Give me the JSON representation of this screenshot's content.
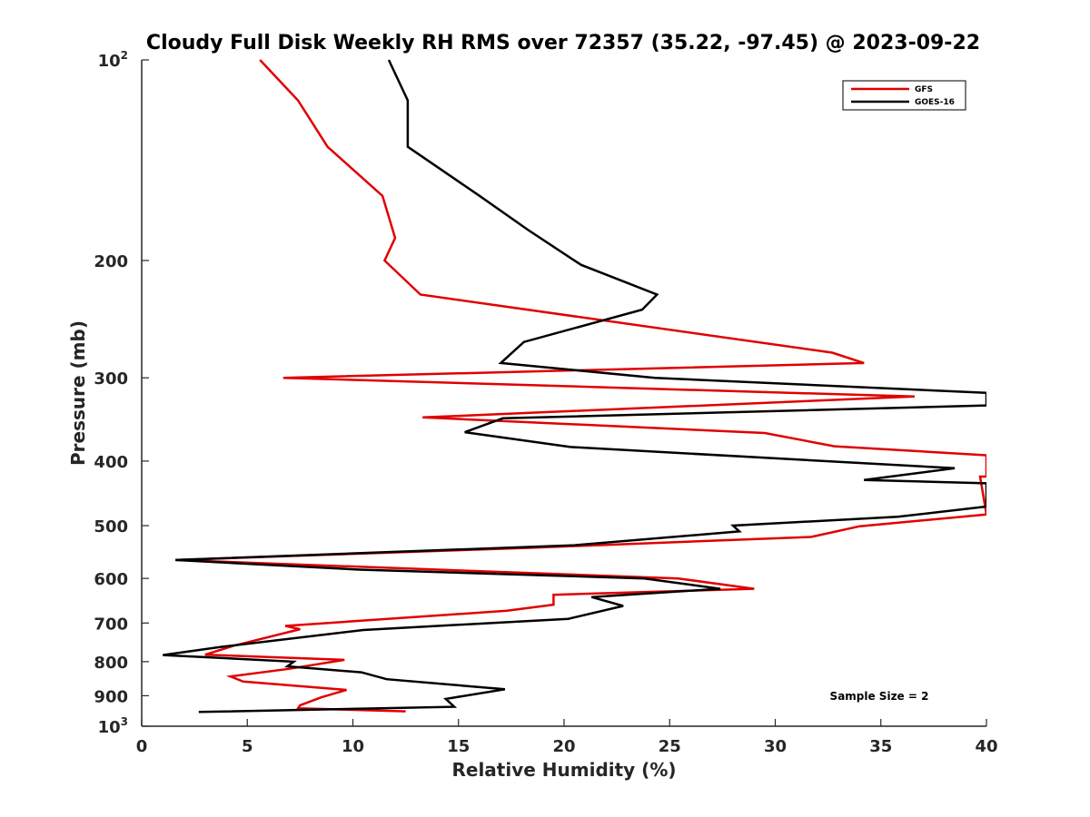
{
  "chart_data": {
    "type": "line",
    "title": "Cloudy Full Disk Weekly RH RMS over 72357 (35.22, -97.45) @ 2023-09-22",
    "xlabel": "Relative Humidity (%)",
    "ylabel": "Pressure (mb)",
    "xlim": [
      0,
      40
    ],
    "ylim": [
      100,
      1000
    ],
    "y_scale": "log",
    "y_reversed": true,
    "grid": false,
    "legend_position": "top-right",
    "x_ticks": [
      "0",
      "5",
      "10",
      "15",
      "20",
      "25",
      "30",
      "35",
      "40"
    ],
    "y_ticks": [
      {
        "value": 100,
        "base": "10",
        "exp": "2"
      },
      {
        "value": 200,
        "label": "200"
      },
      {
        "value": 300,
        "label": "300"
      },
      {
        "value": 400,
        "label": "400"
      },
      {
        "value": 500,
        "label": "500"
      },
      {
        "value": 600,
        "label": "600"
      },
      {
        "value": 700,
        "label": "700"
      },
      {
        "value": 800,
        "label": "800"
      },
      {
        "value": 900,
        "label": "900"
      },
      {
        "value": 1000,
        "base": "10",
        "exp": "3"
      }
    ],
    "annotation": "Sample Size = 2",
    "series": [
      {
        "name": "GFS",
        "color": "#e00000",
        "points": [
          [
            5.6,
            100
          ],
          [
            7.4,
            115
          ],
          [
            8.8,
            135
          ],
          [
            11.4,
            160
          ],
          [
            12.0,
            185
          ],
          [
            11.5,
            200
          ],
          [
            13.2,
            225
          ],
          [
            32.7,
            275
          ],
          [
            34.2,
            285
          ],
          [
            6.7,
            300
          ],
          [
            36.6,
            320
          ],
          [
            13.3,
            344
          ],
          [
            29.5,
            363
          ],
          [
            32.8,
            380
          ],
          [
            40.0,
            392
          ],
          [
            40.0,
            422
          ],
          [
            39.7,
            422
          ],
          [
            40.0,
            481
          ],
          [
            34.0,
            501
          ],
          [
            31.7,
            520
          ],
          [
            18.2,
            540
          ],
          [
            1.6,
            563
          ],
          [
            25.4,
            600
          ],
          [
            29.0,
            622
          ],
          [
            19.5,
            635
          ],
          [
            19.5,
            657
          ],
          [
            17.3,
            671
          ],
          [
            6.8,
            707
          ],
          [
            7.5,
            715
          ],
          [
            4.3,
            758
          ],
          [
            3.0,
            781
          ],
          [
            9.6,
            795
          ],
          [
            7.0,
            820
          ],
          [
            4.2,
            842
          ],
          [
            4.8,
            857
          ],
          [
            9.7,
            882
          ],
          [
            8.5,
            905
          ],
          [
            7.5,
            930
          ],
          [
            7.4,
            940
          ],
          [
            12.5,
            950
          ]
        ]
      },
      {
        "name": "GOES-16",
        "color": "#000000",
        "points": [
          [
            11.7,
            100
          ],
          [
            12.6,
            115
          ],
          [
            12.6,
            135
          ],
          [
            16.0,
            160
          ],
          [
            18.3,
            180
          ],
          [
            20.8,
            203
          ],
          [
            24.4,
            225
          ],
          [
            23.7,
            237
          ],
          [
            18.1,
            265
          ],
          [
            17.0,
            285
          ],
          [
            24.3,
            300
          ],
          [
            40.0,
            316
          ],
          [
            40.0,
            330
          ],
          [
            17.1,
            345
          ],
          [
            15.3,
            362
          ],
          [
            20.3,
            381
          ],
          [
            38.5,
            410
          ],
          [
            34.2,
            427
          ],
          [
            40.0,
            432
          ],
          [
            40.0,
            468
          ],
          [
            35.8,
            485
          ],
          [
            28.0,
            500
          ],
          [
            28.3,
            510
          ],
          [
            20.5,
            535
          ],
          [
            1.6,
            563
          ],
          [
            10.3,
            582
          ],
          [
            23.8,
            600
          ],
          [
            27.4,
            622
          ],
          [
            21.3,
            640
          ],
          [
            22.8,
            660
          ],
          [
            20.2,
            690
          ],
          [
            10.5,
            717
          ],
          [
            3.8,
            760
          ],
          [
            1.0,
            782
          ],
          [
            7.2,
            800
          ],
          [
            6.9,
            813
          ],
          [
            10.4,
            830
          ],
          [
            11.6,
            850
          ],
          [
            17.2,
            880
          ],
          [
            14.4,
            910
          ],
          [
            14.8,
            935
          ],
          [
            2.7,
            952
          ]
        ]
      }
    ]
  }
}
